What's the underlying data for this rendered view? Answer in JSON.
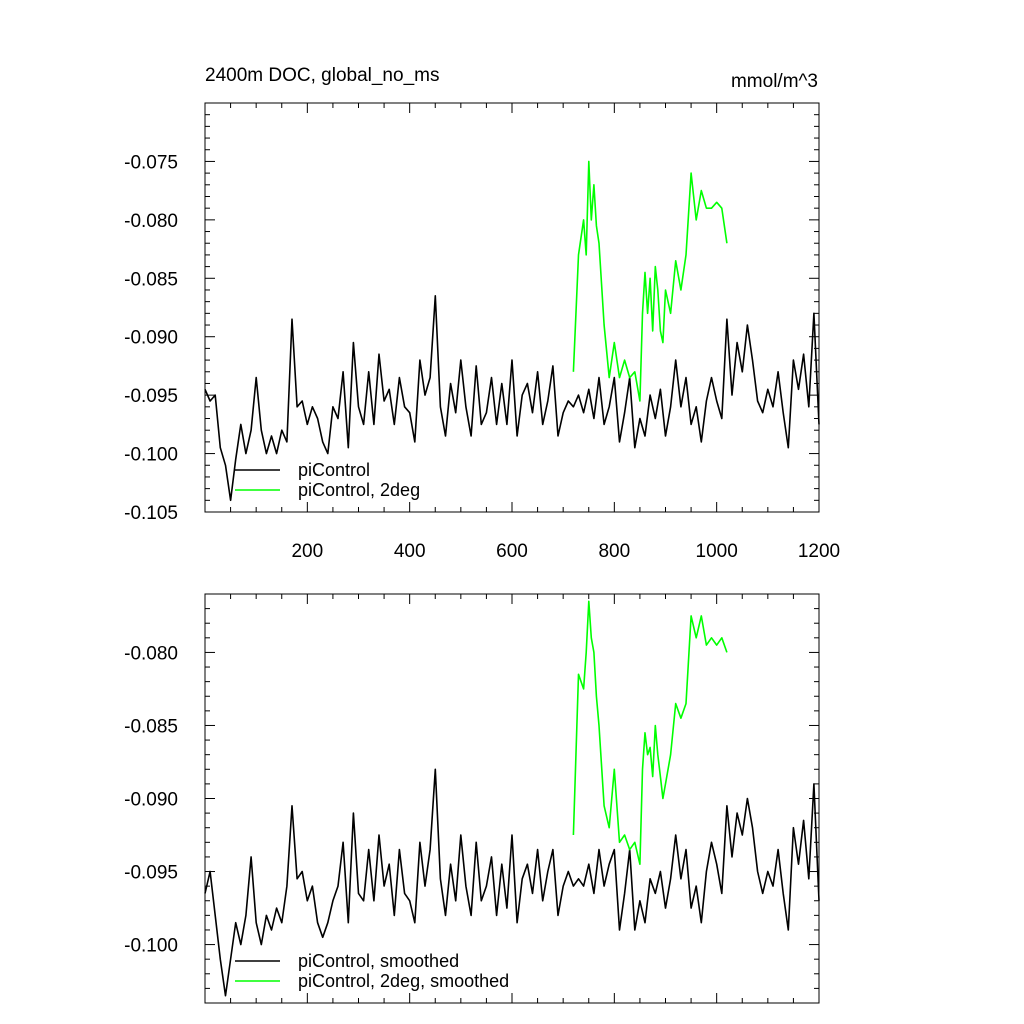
{
  "chart_data": [
    {
      "type": "line",
      "title": "2400m DOC, global_no_ms",
      "units": "mmol/m^3",
      "xlim": [
        0,
        1200
      ],
      "ylim": [
        -0.105,
        -0.07
      ],
      "x_ticks": [
        "200",
        "400",
        "600",
        "800",
        "1000",
        "1200"
      ],
      "y_ticks": [
        "-0.075",
        "-0.080",
        "-0.085",
        "-0.090",
        "-0.095",
        "-0.100",
        "-0.105"
      ],
      "legend_position": "bottom-left",
      "series": [
        {
          "name": "piControl",
          "color": "#000000",
          "x": [
            0,
            10,
            20,
            30,
            40,
            50,
            60,
            70,
            80,
            90,
            100,
            110,
            120,
            130,
            140,
            150,
            160,
            170,
            180,
            190,
            200,
            210,
            220,
            230,
            240,
            250,
            260,
            270,
            280,
            290,
            300,
            310,
            320,
            330,
            340,
            350,
            360,
            370,
            380,
            390,
            400,
            410,
            420,
            430,
            440,
            450,
            460,
            470,
            480,
            490,
            500,
            510,
            520,
            530,
            540,
            550,
            560,
            570,
            580,
            590,
            600,
            610,
            620,
            630,
            640,
            650,
            660,
            670,
            680,
            690,
            700,
            710,
            720,
            730,
            740,
            750,
            760,
            770,
            780,
            790,
            800,
            810,
            820,
            830,
            840,
            850,
            860,
            870,
            880,
            890,
            900,
            910,
            920,
            930,
            940,
            950,
            960,
            970,
            980,
            990,
            1000,
            1010,
            1020,
            1030,
            1040,
            1050,
            1060,
            1070,
            1080,
            1090,
            1100,
            1110,
            1120,
            1130,
            1140,
            1150,
            1160,
            1170,
            1180,
            1190,
            1200
          ],
          "y": [
            -0.0945,
            -0.0955,
            -0.095,
            -0.0995,
            -0.101,
            -0.104,
            -0.1005,
            -0.0975,
            -0.1,
            -0.098,
            -0.0935,
            -0.098,
            -0.1,
            -0.0985,
            -0.1,
            -0.098,
            -0.099,
            -0.0885,
            -0.096,
            -0.0955,
            -0.0975,
            -0.096,
            -0.097,
            -0.099,
            -0.1,
            -0.096,
            -0.097,
            -0.093,
            -0.0995,
            -0.0905,
            -0.096,
            -0.0975,
            -0.093,
            -0.0975,
            -0.0915,
            -0.0955,
            -0.0945,
            -0.0975,
            -0.0935,
            -0.096,
            -0.0965,
            -0.099,
            -0.092,
            -0.095,
            -0.0935,
            -0.0865,
            -0.096,
            -0.0985,
            -0.094,
            -0.0965,
            -0.092,
            -0.096,
            -0.0985,
            -0.0925,
            -0.0975,
            -0.0965,
            -0.0935,
            -0.0975,
            -0.094,
            -0.0975,
            -0.092,
            -0.0985,
            -0.095,
            -0.094,
            -0.0965,
            -0.093,
            -0.0975,
            -0.0955,
            -0.0925,
            -0.0985,
            -0.0965,
            -0.0955,
            -0.096,
            -0.095,
            -0.0965,
            -0.0945,
            -0.097,
            -0.0935,
            -0.0975,
            -0.096,
            -0.0935,
            -0.099,
            -0.0965,
            -0.0935,
            -0.0995,
            -0.097,
            -0.0985,
            -0.095,
            -0.097,
            -0.0945,
            -0.0985,
            -0.096,
            -0.092,
            -0.096,
            -0.0935,
            -0.0975,
            -0.096,
            -0.099,
            -0.0955,
            -0.0935,
            -0.0955,
            -0.097,
            -0.0885,
            -0.095,
            -0.0905,
            -0.093,
            -0.089,
            -0.092,
            -0.0955,
            -0.0965,
            -0.0945,
            -0.096,
            -0.093,
            -0.0965,
            -0.0995,
            -0.092,
            -0.0945,
            -0.0915,
            -0.096,
            -0.088,
            -0.0975
          ],
          "data_label": "piControl"
        },
        {
          "name": "piControl, 2deg",
          "color": "#00ff00",
          "x": [
            720,
            730,
            740,
            745,
            750,
            755,
            760,
            765,
            770,
            780,
            790,
            800,
            810,
            820,
            830,
            840,
            850,
            855,
            860,
            865,
            870,
            875,
            880,
            885,
            890,
            895,
            900,
            910,
            920,
            930,
            940,
            950,
            960,
            970,
            980,
            990,
            1000,
            1010,
            1020
          ],
          "y": [
            -0.093,
            -0.083,
            -0.08,
            -0.083,
            -0.075,
            -0.08,
            -0.077,
            -0.0805,
            -0.082,
            -0.089,
            -0.0935,
            -0.0905,
            -0.0935,
            -0.092,
            -0.0935,
            -0.093,
            -0.0955,
            -0.088,
            -0.0845,
            -0.088,
            -0.085,
            -0.0895,
            -0.084,
            -0.086,
            -0.0895,
            -0.0905,
            -0.086,
            -0.088,
            -0.0835,
            -0.086,
            -0.083,
            -0.076,
            -0.08,
            -0.0775,
            -0.079,
            -0.079,
            -0.0785,
            -0.079,
            -0.082
          ],
          "data_label": "piControl, 2deg"
        }
      ]
    },
    {
      "type": "line",
      "title": "",
      "xlim": [
        0,
        1200
      ],
      "ylim": [
        -0.104,
        -0.076
      ],
      "x_ticks": [],
      "y_ticks": [
        "-0.080",
        "-0.085",
        "-0.090",
        "-0.095",
        "-0.100"
      ],
      "legend_position": "bottom-left",
      "series": [
        {
          "name": "piControl, smoothed",
          "color": "#000000",
          "x": [
            0,
            10,
            20,
            30,
            40,
            50,
            60,
            70,
            80,
            90,
            100,
            110,
            120,
            130,
            140,
            150,
            160,
            170,
            180,
            190,
            200,
            210,
            220,
            230,
            240,
            250,
            260,
            270,
            280,
            290,
            300,
            310,
            320,
            330,
            340,
            350,
            360,
            370,
            380,
            390,
            400,
            410,
            420,
            430,
            440,
            450,
            460,
            470,
            480,
            490,
            500,
            510,
            520,
            530,
            540,
            550,
            560,
            570,
            580,
            590,
            600,
            610,
            620,
            630,
            640,
            650,
            660,
            670,
            680,
            690,
            700,
            710,
            720,
            730,
            740,
            750,
            760,
            770,
            780,
            790,
            800,
            810,
            820,
            830,
            840,
            850,
            860,
            870,
            880,
            890,
            900,
            910,
            920,
            930,
            940,
            950,
            960,
            970,
            980,
            990,
            1000,
            1010,
            1020,
            1030,
            1040,
            1050,
            1060,
            1070,
            1080,
            1090,
            1100,
            1110,
            1120,
            1130,
            1140,
            1150,
            1160,
            1170,
            1180,
            1190,
            1200
          ],
          "y": [
            -0.0965,
            -0.095,
            -0.098,
            -0.101,
            -0.1035,
            -0.101,
            -0.0985,
            -0.1,
            -0.098,
            -0.094,
            -0.0985,
            -0.1,
            -0.098,
            -0.099,
            -0.0975,
            -0.0985,
            -0.096,
            -0.0905,
            -0.0955,
            -0.095,
            -0.097,
            -0.096,
            -0.0985,
            -0.0995,
            -0.0985,
            -0.097,
            -0.096,
            -0.093,
            -0.0985,
            -0.091,
            -0.0965,
            -0.097,
            -0.0935,
            -0.097,
            -0.0925,
            -0.096,
            -0.0945,
            -0.098,
            -0.0935,
            -0.0965,
            -0.097,
            -0.0985,
            -0.093,
            -0.096,
            -0.0935,
            -0.088,
            -0.0955,
            -0.098,
            -0.0945,
            -0.097,
            -0.0925,
            -0.096,
            -0.098,
            -0.093,
            -0.097,
            -0.096,
            -0.094,
            -0.098,
            -0.0945,
            -0.0975,
            -0.0925,
            -0.0985,
            -0.0955,
            -0.0945,
            -0.0965,
            -0.0935,
            -0.097,
            -0.095,
            -0.0935,
            -0.098,
            -0.096,
            -0.095,
            -0.096,
            -0.0955,
            -0.096,
            -0.0945,
            -0.0965,
            -0.0935,
            -0.096,
            -0.0945,
            -0.0935,
            -0.099,
            -0.0965,
            -0.0935,
            -0.099,
            -0.097,
            -0.0985,
            -0.0955,
            -0.0965,
            -0.095,
            -0.0975,
            -0.0955,
            -0.0925,
            -0.0955,
            -0.0935,
            -0.0975,
            -0.096,
            -0.0985,
            -0.095,
            -0.093,
            -0.0945,
            -0.0965,
            -0.0905,
            -0.094,
            -0.091,
            -0.0925,
            -0.09,
            -0.092,
            -0.095,
            -0.0965,
            -0.095,
            -0.096,
            -0.0935,
            -0.0965,
            -0.099,
            -0.092,
            -0.0945,
            -0.0915,
            -0.0955,
            -0.089,
            -0.097
          ],
          "data_label": "piControl, smoothed"
        },
        {
          "name": "piControl, 2deg, smoothed",
          "color": "#00ff00",
          "x": [
            720,
            730,
            740,
            745,
            750,
            755,
            760,
            765,
            770,
            780,
            790,
            800,
            810,
            820,
            830,
            840,
            850,
            855,
            860,
            865,
            870,
            875,
            880,
            885,
            890,
            895,
            900,
            910,
            920,
            930,
            940,
            950,
            960,
            970,
            980,
            990,
            1000,
            1010,
            1020
          ],
          "y": [
            -0.0925,
            -0.0815,
            -0.0825,
            -0.08,
            -0.0765,
            -0.079,
            -0.08,
            -0.083,
            -0.085,
            -0.0905,
            -0.092,
            -0.088,
            -0.093,
            -0.0925,
            -0.0935,
            -0.093,
            -0.0945,
            -0.088,
            -0.0855,
            -0.087,
            -0.0865,
            -0.0885,
            -0.085,
            -0.087,
            -0.0885,
            -0.09,
            -0.089,
            -0.087,
            -0.0835,
            -0.0845,
            -0.0835,
            -0.0775,
            -0.079,
            -0.0775,
            -0.0795,
            -0.079,
            -0.0795,
            -0.079,
            -0.08
          ],
          "data_label": "piControl, 2deg, smoothed"
        }
      ]
    }
  ]
}
